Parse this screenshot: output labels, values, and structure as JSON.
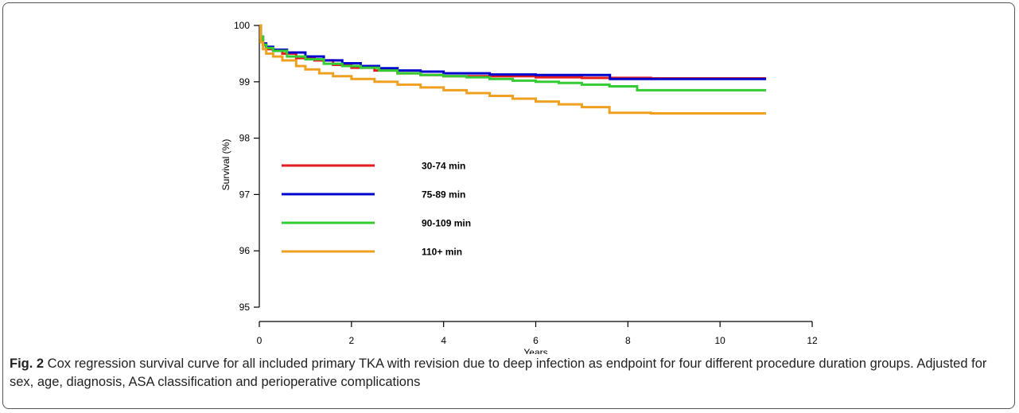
{
  "chart_data": {
    "type": "line",
    "xlabel": "Years",
    "ylabel": "Survival (%)",
    "xlim": [
      0,
      12
    ],
    "ylim": [
      95,
      100
    ],
    "xticks": [
      0,
      2,
      4,
      6,
      8,
      10,
      12
    ],
    "yticks": [
      95,
      96,
      97,
      98,
      99,
      100
    ],
    "grid": false,
    "legend_placement": "inside-left",
    "series": [
      {
        "name": "30-74 min",
        "color": "#e41a1c",
        "x": [
          0,
          0.03,
          0.08,
          0.15,
          0.3,
          0.5,
          0.8,
          1.2,
          1.6,
          2.0,
          2.5,
          3.0,
          3.5,
          4.0,
          5.0,
          6.0,
          7.0,
          7.5,
          8.5,
          11.0
        ],
        "y": [
          100,
          99.8,
          99.65,
          99.58,
          99.55,
          99.5,
          99.42,
          99.38,
          99.3,
          99.25,
          99.2,
          99.15,
          99.12,
          99.1,
          99.1,
          99.08,
          99.07,
          99.07,
          99.06,
          99.06
        ]
      },
      {
        "name": "75-89 min",
        "color": "#0000cc",
        "x": [
          0,
          0.03,
          0.08,
          0.15,
          0.3,
          0.6,
          1.0,
          1.4,
          1.8,
          2.2,
          2.6,
          3.0,
          3.5,
          4.0,
          5.0,
          6.0,
          7.6,
          7.61,
          11.0
        ],
        "y": [
          100,
          99.8,
          99.68,
          99.62,
          99.57,
          99.52,
          99.45,
          99.38,
          99.33,
          99.28,
          99.24,
          99.2,
          99.18,
          99.15,
          99.13,
          99.12,
          99.12,
          99.05,
          99.05
        ]
      },
      {
        "name": "90-109 min",
        "color": "#33cc33",
        "x": [
          0,
          0.03,
          0.08,
          0.15,
          0.3,
          0.6,
          1.0,
          1.4,
          1.8,
          2.2,
          2.6,
          3.0,
          3.5,
          4.0,
          4.5,
          5.0,
          5.5,
          6.0,
          6.5,
          7.0,
          7.6,
          8.2,
          11.0
        ],
        "y": [
          100,
          99.8,
          99.66,
          99.6,
          99.55,
          99.45,
          99.4,
          99.32,
          99.28,
          99.25,
          99.2,
          99.15,
          99.12,
          99.1,
          99.08,
          99.05,
          99.02,
          99.0,
          98.98,
          98.95,
          98.92,
          98.85,
          98.85
        ]
      },
      {
        "name": "110+ min",
        "color": "#f0a020",
        "x": [
          0,
          0.03,
          0.08,
          0.15,
          0.3,
          0.5,
          0.8,
          1.0,
          1.3,
          1.6,
          2.0,
          2.5,
          3.0,
          3.5,
          4.0,
          4.5,
          5.0,
          5.5,
          6.0,
          6.5,
          7.0,
          7.6,
          8.5,
          11.0
        ],
        "y": [
          100,
          99.7,
          99.58,
          99.5,
          99.45,
          99.38,
          99.28,
          99.22,
          99.15,
          99.1,
          99.05,
          99.0,
          98.95,
          98.9,
          98.85,
          98.8,
          98.75,
          98.7,
          98.65,
          98.6,
          98.55,
          98.45,
          98.44,
          98.44
        ]
      }
    ]
  },
  "caption": {
    "label": "Fig. 2",
    "text": " Cox regression survival curve for all included primary TKA with revision due to deep infection as endpoint for four different procedure duration groups. Adjusted for sex, age, diagnosis, ASA classification and perioperative complications"
  }
}
